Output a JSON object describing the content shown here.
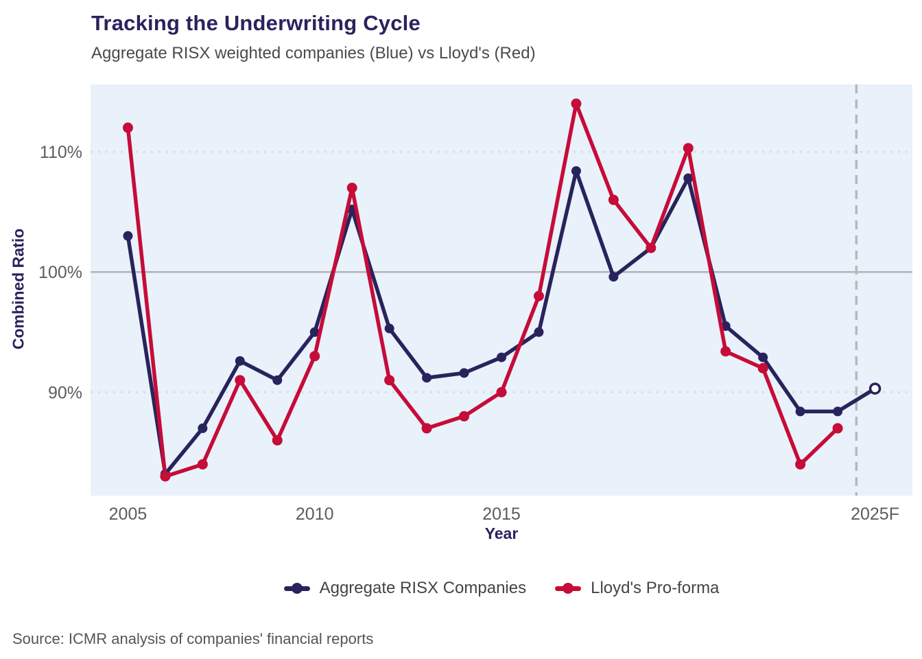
{
  "header": {
    "title": "Tracking the Underwriting Cycle",
    "subtitle": "Aggregate RISX weighted companies (Blue) vs Lloyd's (Red)"
  },
  "chart_data": {
    "type": "line",
    "title": "Tracking the Underwriting Cycle",
    "subtitle": "Aggregate RISX weighted companies (Blue) vs Lloyd's (Red)",
    "xlabel": "Year",
    "ylabel": "Combined Ratio",
    "x": [
      2005,
      2006,
      2007,
      2008,
      2009,
      2010,
      2011,
      2012,
      2013,
      2014,
      2015,
      2016,
      2017,
      2018,
      2019,
      2020,
      2021,
      2022,
      2023,
      2024,
      2025
    ],
    "series": [
      {
        "name": "Aggregate RISX Companies",
        "color": "#29235c",
        "values": [
          103.0,
          83.2,
          87.0,
          92.6,
          91.0,
          95.0,
          105.2,
          95.3,
          91.2,
          91.6,
          92.9,
          95.0,
          108.4,
          99.6,
          102.0,
          107.8,
          95.5,
          92.9,
          88.4,
          88.4,
          90.3
        ],
        "last_point_style": "open-forecast"
      },
      {
        "name": "Lloyd's Pro-forma",
        "color": "#c60c38",
        "values": [
          112.0,
          83.0,
          84.0,
          91.0,
          86.0,
          93.0,
          107.0,
          91.0,
          87.0,
          88.0,
          90.0,
          98.0,
          114.0,
          106.0,
          102.0,
          110.3,
          93.4,
          92.0,
          84.0,
          87.0,
          null
        ],
        "last_point_style": "none"
      }
    ],
    "xticks": [
      {
        "x": 2005,
        "label": "2005"
      },
      {
        "x": 2010,
        "label": "2010"
      },
      {
        "x": 2015,
        "label": "2015"
      },
      {
        "x": 2025,
        "label": "2025F"
      }
    ],
    "yticks": [
      {
        "y": 110,
        "label": "110%",
        "grid": "dotted"
      },
      {
        "y": 100,
        "label": "100%",
        "grid": "solid"
      },
      {
        "y": 90,
        "label": "90%",
        "grid": "dotted"
      }
    ],
    "xlim": [
      2004,
      2026
    ],
    "ylim": [
      81.4,
      115.6
    ],
    "forecast_divider_year": 2024.5,
    "plot_bg": "#e9f1fb",
    "grid_dotted_color": "#ddd8d2",
    "grid_solid_color": "#b3b3b3",
    "divider_color": "#b8b8b8",
    "legend_position": "bottom",
    "grid": true
  },
  "legend": {
    "items": [
      {
        "label": "Aggregate RISX Companies",
        "color": "#29235c"
      },
      {
        "label": "Lloyd's Pro-forma",
        "color": "#c60c38"
      }
    ]
  },
  "footer": {
    "source": "Source: ICMR analysis of companies' financial reports"
  }
}
